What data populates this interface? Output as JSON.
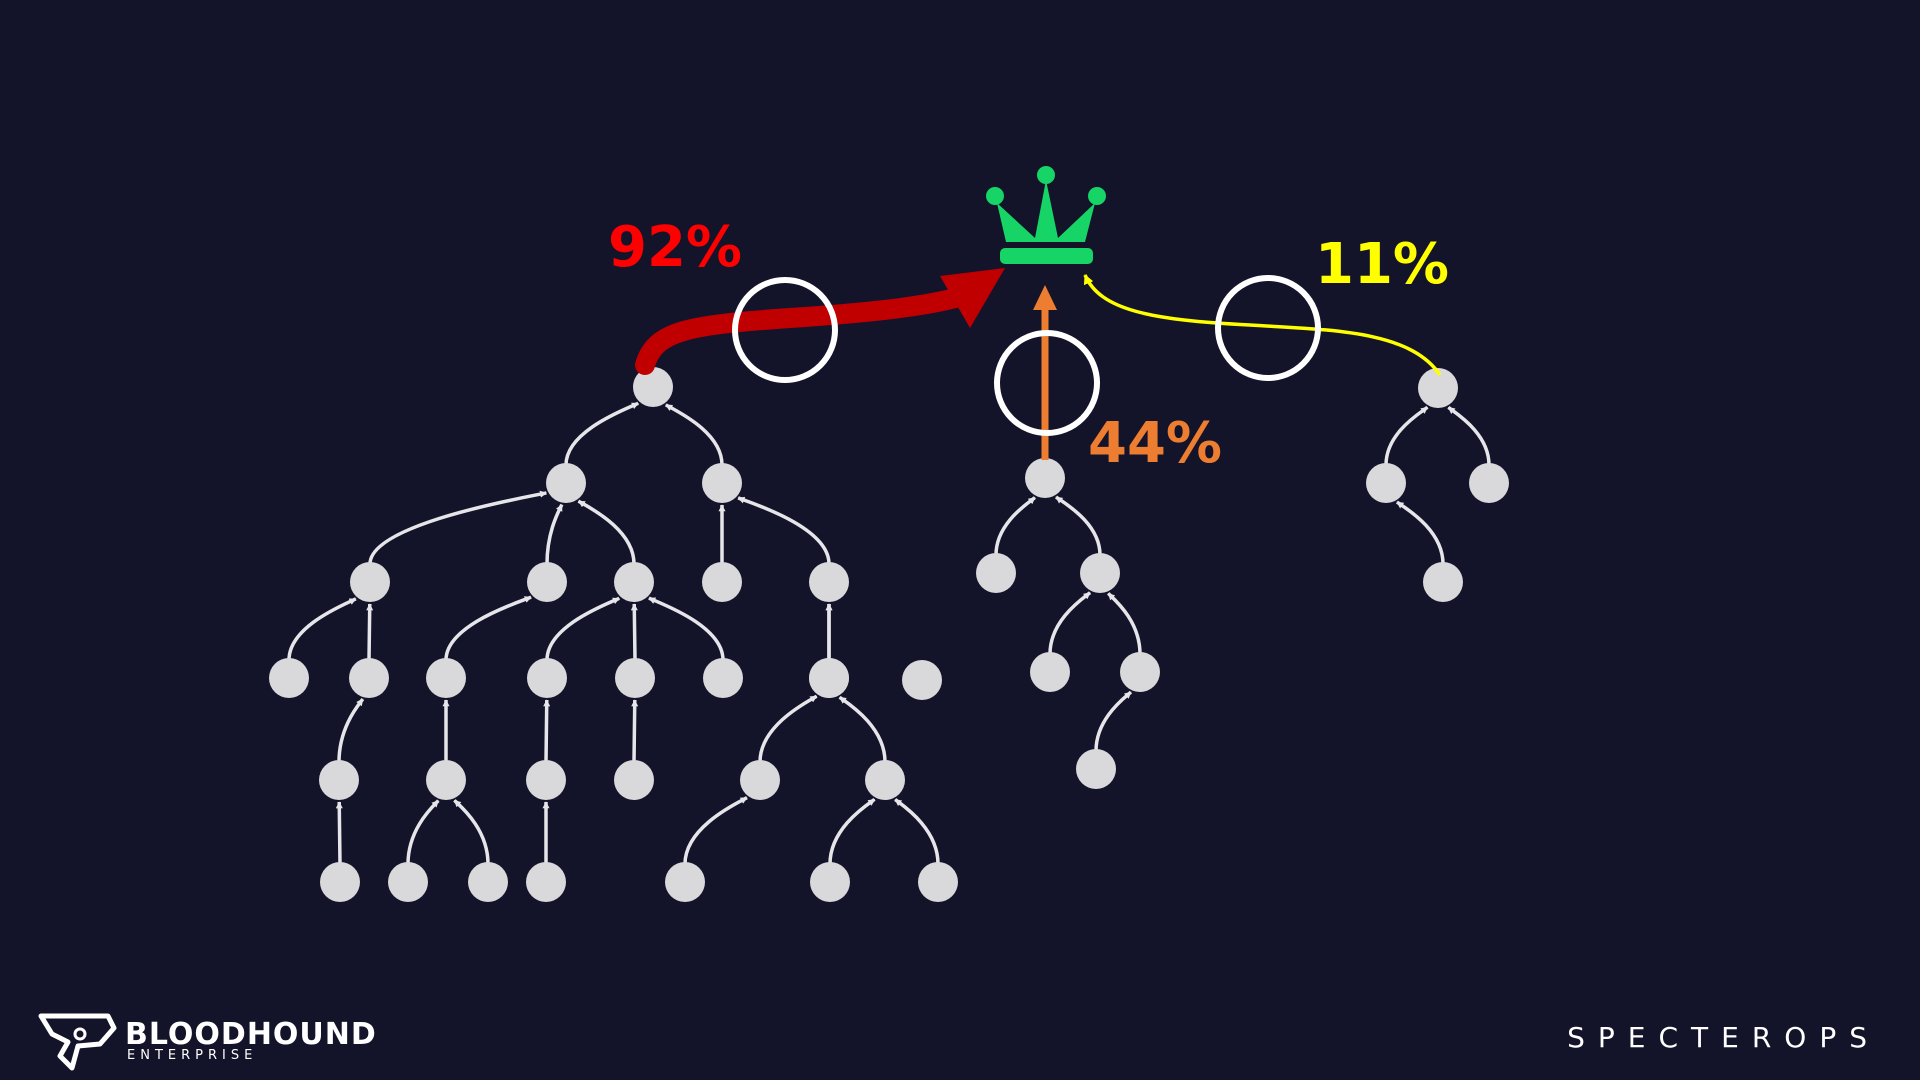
{
  "labels": {
    "pct_red": "92%",
    "pct_orange": "44%",
    "pct_yellow": "11%"
  },
  "branding": {
    "left_main": "BLOODHOUND",
    "left_sub": "ENTERPRISE",
    "right": "SPECTEROPS"
  },
  "colors": {
    "background": "#13132a",
    "node": "#d9d9dc",
    "edge": "#e6e6ea",
    "crown": "#17d466",
    "red": "#c00000",
    "orange": "#ed7d31",
    "yellow": "#ffff00"
  },
  "icons": {
    "target": "crown-icon",
    "logo": "bloodhound-logo-icon"
  }
}
